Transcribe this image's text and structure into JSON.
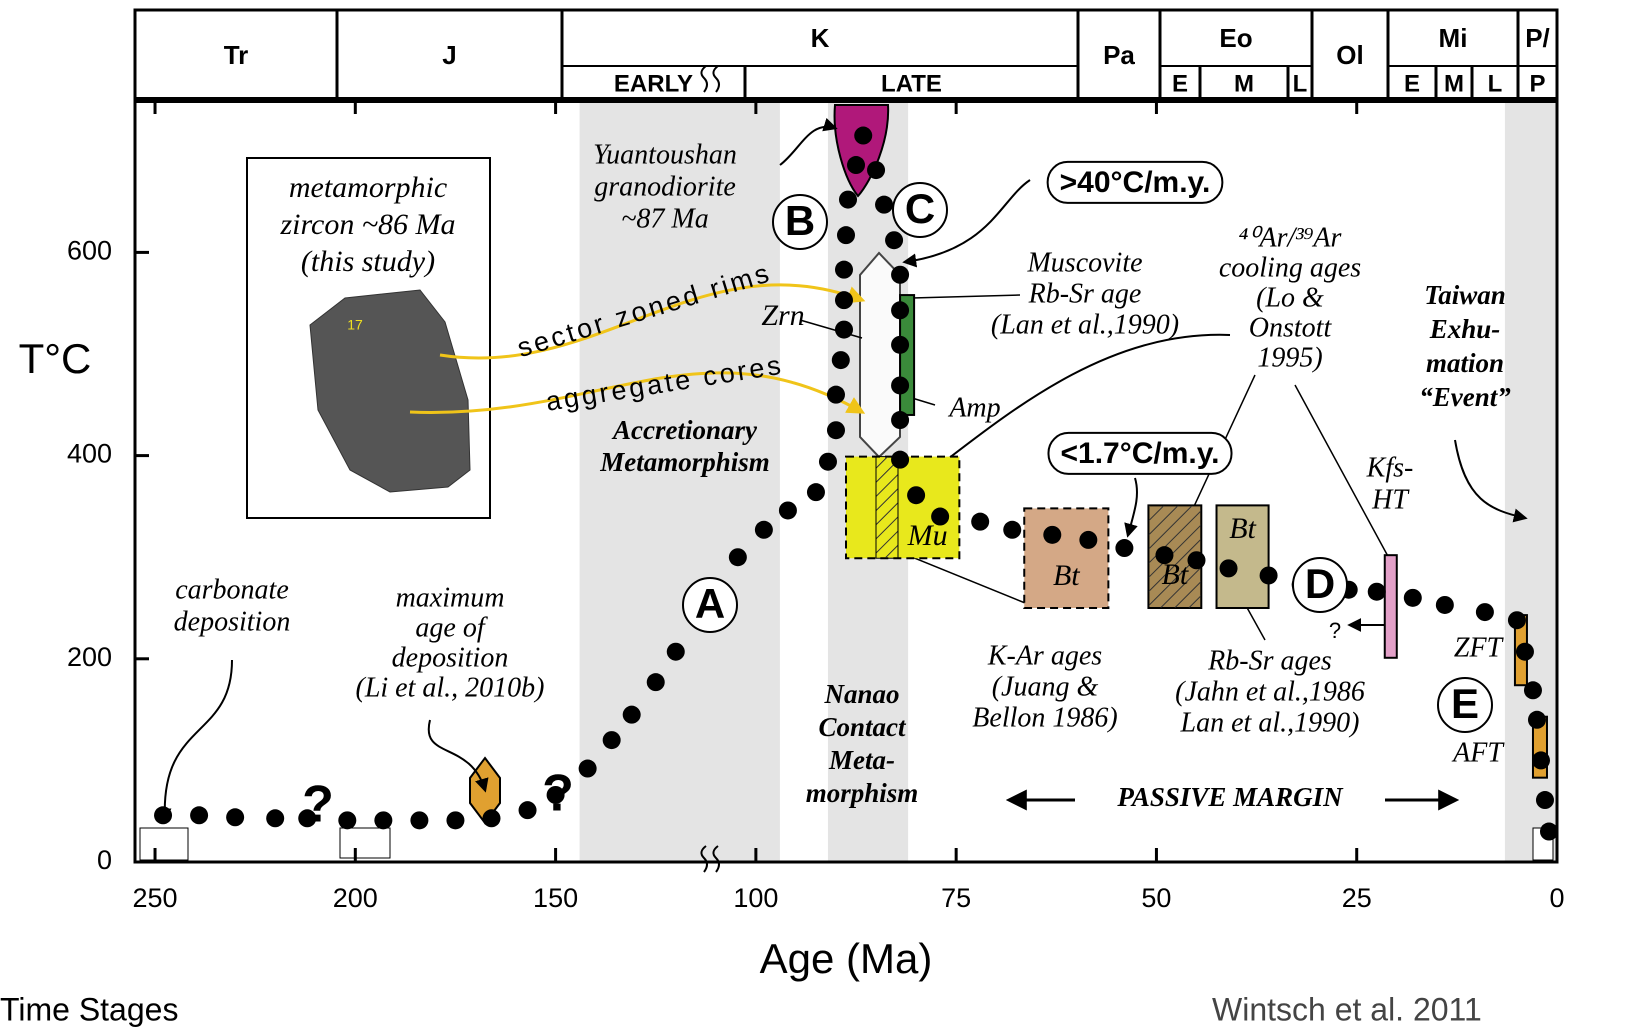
{
  "chart_data": {
    "type": "scatter",
    "x_label": "Age (Ma)",
    "y_label": "T°C",
    "xlim": [
      255,
      0
    ],
    "ylim": [
      0,
      750
    ],
    "xticks": [
      250,
      200,
      150,
      100,
      75,
      50,
      25,
      0
    ],
    "yticks": [
      0,
      200,
      400,
      600
    ],
    "color": "#000000",
    "x": [
      248,
      239,
      230,
      220,
      212,
      202,
      193,
      184,
      175,
      166,
      157,
      150,
      142,
      136,
      131,
      125,
      120,
      114,
      109,
      104.5,
      99,
      96,
      92.5,
      91,
      90,
      90,
      89.4,
      89,
      89,
      89,
      88.75,
      88.5,
      87.5,
      86.6,
      85,
      84,
      82.75,
      82,
      82,
      82,
      82,
      82,
      82,
      80,
      77,
      72,
      68,
      63,
      58.5,
      54,
      49,
      45,
      41,
      36,
      32,
      26,
      22.5,
      18,
      14,
      9,
      5,
      4,
      3,
      2.5,
      2,
      1.5,
      1
    ],
    "values": [
      46,
      46,
      44,
      43,
      43,
      41,
      41,
      41,
      41,
      43,
      51,
      66,
      92,
      120,
      145,
      177,
      207,
      240,
      268,
      300,
      327,
      346,
      364,
      394,
      425,
      460,
      494,
      524,
      553,
      583,
      617,
      652,
      686,
      715,
      681,
      647,
      612,
      578,
      543,
      509,
      469,
      435,
      396,
      361,
      340,
      335,
      327,
      322,
      317,
      309,
      302,
      297,
      289,
      282,
      273,
      268,
      266,
      260,
      253,
      246,
      238,
      207,
      169,
      140,
      100,
      61,
      30
    ],
    "shaded_ages": [
      [
        144,
        97
      ],
      [
        91,
        81
      ],
      [
        6.5,
        0
      ]
    ],
    "boxes": [
      {
        "label": "Mu",
        "x": [
          88.75,
          74.6
        ],
        "y": [
          399,
          299
        ],
        "color": "#e8e81c"
      },
      {
        "label": "Bt",
        "x": [
          66.5,
          56
        ],
        "y": [
          348,
          250
        ],
        "color": "#d4a886"
      },
      {
        "label": "Bt",
        "x": [
          51,
          44.4
        ],
        "y": [
          351,
          250
        ],
        "color": "#a88a55"
      },
      {
        "label": "Bt",
        "x": [
          42.5,
          36
        ],
        "y": [
          351,
          250
        ],
        "color": "#c4b98c"
      },
      {
        "x": [
          21.5,
          20
        ],
        "y": [
          302,
          201
        ],
        "color": "#e3a0c8"
      },
      {
        "x": [
          5.25,
          3.75
        ],
        "y": [
          243,
          174
        ],
        "color": "#e0a030"
      },
      {
        "x": [
          3,
          1.25
        ],
        "y": [
          143,
          83
        ],
        "color": "#e0a030"
      },
      {
        "x": [
          82,
          80.25
        ],
        "y": [
          558,
          440
        ],
        "color": "#3a8a3a"
      }
    ],
    "periods": [
      {
        "label": "Tr"
      },
      {
        "label": "J"
      },
      {
        "label": "K",
        "sub": [
          "EARLY",
          "LATE"
        ]
      },
      {
        "label": "Pa"
      },
      {
        "label": "Eo",
        "sub": [
          "E",
          "M",
          "L"
        ]
      },
      {
        "label": "Ol"
      },
      {
        "label": "Mi",
        "sub": [
          "E",
          "M",
          "L"
        ]
      },
      {
        "label": "P/",
        "sub": [
          "P"
        ]
      }
    ],
    "stages": [
      "A",
      "B",
      "C",
      "D",
      "E"
    ],
    "annotations": [
      [
        "metamorphic",
        "zircon ~86 Ma",
        "(this study)"
      ],
      [
        "Yuantoushan",
        "granodiorite",
        "~87 Ma"
      ],
      [
        "sector zoned rims"
      ],
      [
        "aggregate cores"
      ],
      [
        "Zrn"
      ],
      [
        "Muscovite",
        "Rb-Sr age",
        "(Lan et al.,1990)"
      ],
      [
        "⁴⁰Ar/³⁹Ar",
        "cooling ages",
        "(Lo &",
        "Onstott",
        "1995)"
      ],
      [
        "Amp"
      ],
      [
        "Accretionary",
        "Metamorphism"
      ],
      [
        "Taiwan",
        "Exhu-",
        "mation",
        "“Event”"
      ],
      [
        "Kfs-",
        "HT"
      ],
      [
        "carbonate",
        "deposition"
      ],
      [
        "maximum",
        "age of",
        "deposition",
        "(Li et al., 2010b)"
      ],
      [
        "K-Ar ages",
        "(Juang &",
        "Bellon 1986)"
      ],
      [
        "Rb-Sr ages",
        "(Jahn et al.,1986",
        "Lan et al.,1990)"
      ],
      [
        "Nanao",
        "Contact",
        "Meta-",
        "morphism"
      ],
      [
        "ZFT"
      ],
      [
        "AFT"
      ],
      [
        "?"
      ],
      [
        "PASSIVE MARGIN"
      ],
      [
        "?"
      ],
      [
        "?"
      ],
      [
        ">40°C/m.y."
      ],
      [
        "<1.7°C/m.y."
      ],
      [
        "17"
      ]
    ],
    "footer_left": "Time Stages",
    "footer_right": "Wintsch et al. 2011"
  }
}
